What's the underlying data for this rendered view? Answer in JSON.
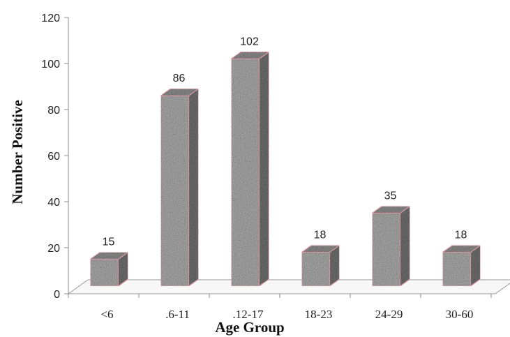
{
  "chart_data": {
    "type": "bar",
    "title": "",
    "xlabel": "Age Group",
    "ylabel": "Number Positive",
    "categories": [
      "<6",
      ".6-11",
      ".12-17",
      "18-23",
      "24-29",
      "30-60"
    ],
    "values": [
      15,
      86,
      102,
      18,
      35,
      18
    ],
    "data_labels": [
      "15",
      "86",
      "102",
      "18",
      "35",
      "18"
    ],
    "ylim": [
      0,
      120
    ],
    "yticks": [
      "0",
      "20",
      "40",
      "60",
      "80",
      "100",
      "120"
    ],
    "grid": false,
    "legend": "none",
    "bar_style": "3d-granite-texture",
    "colors": {
      "bar_front": "#a8a8a8",
      "bar_side": "#6e6e6e",
      "bar_top": "#8a8a8a",
      "bar_outline": "#e8a6b0",
      "axis": "#8a8a8a",
      "floor": "#9a9a9a"
    }
  }
}
